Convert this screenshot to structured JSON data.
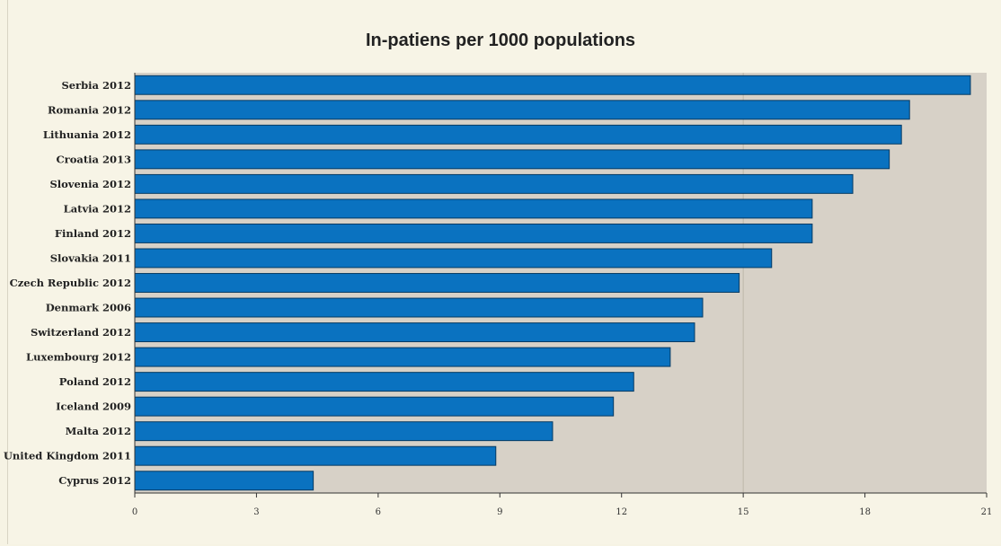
{
  "chart_data": {
    "type": "bar",
    "orientation": "horizontal",
    "title": "In-patiens per 1000 populations",
    "categories": [
      "Serbia 2012",
      "Romania 2012",
      "Lithuania 2012",
      "Croatia 2013",
      "Slovenia 2012",
      "Latvia 2012",
      "Finland 2012",
      "Slovakia 2011",
      "Czech Republic 2012",
      "Denmark 2006",
      "Switzerland 2012",
      "Luxembourg 2012",
      "Poland 2012",
      "Iceland 2009",
      "Malta 2012",
      "United Kingdom 2011",
      "Cyprus 2012"
    ],
    "values": [
      20.6,
      19.1,
      18.9,
      18.6,
      17.7,
      16.7,
      16.7,
      15.7,
      14.9,
      14.0,
      13.8,
      13.2,
      12.3,
      11.8,
      10.3,
      8.9,
      4.4
    ],
    "xlim": [
      0,
      21
    ],
    "xticks": [
      "0",
      "3",
      "6",
      "9",
      "12",
      "15",
      "18",
      "21"
    ],
    "bar_color": "#0a72c0",
    "plot_background": "#d7d1c7",
    "xlabel": "",
    "ylabel": ""
  }
}
